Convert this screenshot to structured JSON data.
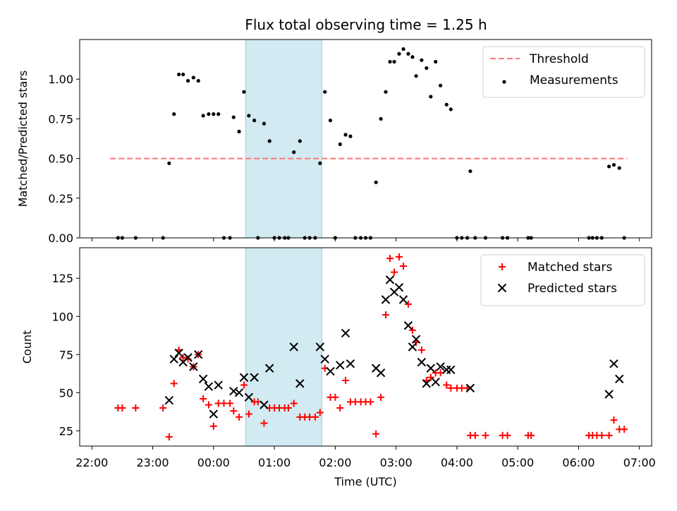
{
  "figure": {
    "title": "Flux total observing time = 1.25 h",
    "shaded_color": "#add8e6"
  },
  "chart_data": [
    {
      "type": "scatter",
      "title": "Flux total observing time = 1.25 h",
      "xlabel": "",
      "ylabel": "Matched/Predicted stars",
      "x_unit": "hours since 22:00 UTC",
      "xlim": [
        -0.2,
        9.2
      ],
      "ylim": [
        0,
        1.25
      ],
      "yticks": [
        0.0,
        0.25,
        0.5,
        0.75,
        1.0
      ],
      "ytick_labels": [
        "0.00",
        "0.25",
        "0.50",
        "0.75",
        "1.00"
      ],
      "legend_position": "upper right",
      "shaded_region": [
        2.53,
        3.78
      ],
      "threshold": {
        "name": "Threshold",
        "value": 0.5,
        "x": [
          0.3,
          8.8
        ],
        "color": "#ff7777",
        "style": "dashed"
      },
      "series": [
        {
          "name": "Measurements",
          "marker": "dot",
          "color": "#000000",
          "points": [
            [
              0.43,
              0
            ],
            [
              0.5,
              0
            ],
            [
              0.72,
              0
            ],
            [
              1.17,
              0
            ],
            [
              1.27,
              0.47
            ],
            [
              1.35,
              0.78
            ],
            [
              1.43,
              1.03
            ],
            [
              1.5,
              1.03
            ],
            [
              1.58,
              0.99
            ],
            [
              1.67,
              1.01
            ],
            [
              1.75,
              0.99
            ],
            [
              1.83,
              0.77
            ],
            [
              1.92,
              0.78
            ],
            [
              2.0,
              0.78
            ],
            [
              2.08,
              0.78
            ],
            [
              2.17,
              0
            ],
            [
              2.27,
              0
            ],
            [
              2.33,
              0.76
            ],
            [
              2.42,
              0.67
            ],
            [
              2.5,
              0.92
            ],
            [
              2.58,
              0.77
            ],
            [
              2.67,
              0.74
            ],
            [
              2.73,
              0
            ],
            [
              2.83,
              0.72
            ],
            [
              2.92,
              0.61
            ],
            [
              3.0,
              0
            ],
            [
              3.08,
              0
            ],
            [
              3.17,
              0
            ],
            [
              3.23,
              0
            ],
            [
              3.32,
              0.54
            ],
            [
              3.42,
              0.61
            ],
            [
              3.5,
              0
            ],
            [
              3.58,
              0
            ],
            [
              3.67,
              0
            ],
            [
              3.75,
              0.47
            ],
            [
              3.83,
              0.92
            ],
            [
              3.92,
              0.74
            ],
            [
              4.0,
              0
            ],
            [
              4.08,
              0.59
            ],
            [
              4.17,
              0.65
            ],
            [
              4.25,
              0.64
            ],
            [
              4.33,
              0
            ],
            [
              4.42,
              0
            ],
            [
              4.5,
              0
            ],
            [
              4.58,
              0
            ],
            [
              4.67,
              0.35
            ],
            [
              4.75,
              0.75
            ],
            [
              4.83,
              0.92
            ],
            [
              4.9,
              1.11
            ],
            [
              4.97,
              1.11
            ],
            [
              5.05,
              1.16
            ],
            [
              5.12,
              1.19
            ],
            [
              5.2,
              1.16
            ],
            [
              5.27,
              1.14
            ],
            [
              5.33,
              1.02
            ],
            [
              5.42,
              1.12
            ],
            [
              5.5,
              1.07
            ],
            [
              5.57,
              0.89
            ],
            [
              5.65,
              1.11
            ],
            [
              5.73,
              0.96
            ],
            [
              5.83,
              0.84
            ],
            [
              5.9,
              0.81
            ],
            [
              6.0,
              0
            ],
            [
              6.08,
              0
            ],
            [
              6.17,
              0
            ],
            [
              6.22,
              0.42
            ],
            [
              6.3,
              0
            ],
            [
              6.47,
              0
            ],
            [
              6.75,
              0
            ],
            [
              6.83,
              0
            ],
            [
              7.17,
              0
            ],
            [
              7.22,
              0
            ],
            [
              8.17,
              0
            ],
            [
              8.23,
              0
            ],
            [
              8.3,
              0
            ],
            [
              8.38,
              0
            ],
            [
              8.5,
              0.45
            ],
            [
              8.58,
              0.46
            ],
            [
              8.67,
              0.44
            ],
            [
              8.75,
              0
            ]
          ]
        }
      ]
    },
    {
      "type": "scatter",
      "title": "",
      "xlabel": "Time (UTC)",
      "ylabel": "Count",
      "x_unit": "hours since 22:00 UTC",
      "xlim": [
        -0.2,
        9.2
      ],
      "ylim": [
        15,
        145
      ],
      "yticks": [
        25,
        50,
        75,
        100,
        125
      ],
      "ytick_labels": [
        "25",
        "50",
        "75",
        "100",
        "125"
      ],
      "xticks": [
        0,
        1,
        2,
        3,
        4,
        5,
        6,
        7,
        8,
        9
      ],
      "xtick_labels": [
        "22:00",
        "23:00",
        "00:00",
        "01:00",
        "02:00",
        "03:00",
        "04:00",
        "05:00",
        "06:00",
        "07:00"
      ],
      "legend_position": "upper right",
      "shaded_region": [
        2.53,
        3.78
      ],
      "series": [
        {
          "name": "Matched stars",
          "marker": "plus",
          "color": "#ff0000",
          "points": [
            [
              0.43,
              40
            ],
            [
              0.5,
              40
            ],
            [
              0.72,
              40
            ],
            [
              1.17,
              40
            ],
            [
              1.27,
              21
            ],
            [
              1.35,
              56
            ],
            [
              1.43,
              78
            ],
            [
              1.5,
              73
            ],
            [
              1.58,
              72
            ],
            [
              1.67,
              67
            ],
            [
              1.75,
              75
            ],
            [
              1.83,
              46
            ],
            [
              1.92,
              42
            ],
            [
              2.0,
              28
            ],
            [
              2.08,
              43
            ],
            [
              2.17,
              43
            ],
            [
              2.27,
              43
            ],
            [
              2.33,
              38
            ],
            [
              2.42,
              34
            ],
            [
              2.5,
              55
            ],
            [
              2.58,
              36
            ],
            [
              2.67,
              44
            ],
            [
              2.73,
              44
            ],
            [
              2.83,
              30
            ],
            [
              2.92,
              40
            ],
            [
              3.0,
              40
            ],
            [
              3.08,
              40
            ],
            [
              3.17,
              40
            ],
            [
              3.23,
              40
            ],
            [
              3.32,
              43
            ],
            [
              3.42,
              34
            ],
            [
              3.5,
              34
            ],
            [
              3.58,
              34
            ],
            [
              3.67,
              34
            ],
            [
              3.75,
              37
            ],
            [
              3.83,
              66
            ],
            [
              3.92,
              47
            ],
            [
              4.0,
              47
            ],
            [
              4.08,
              40
            ],
            [
              4.17,
              58
            ],
            [
              4.25,
              44
            ],
            [
              4.33,
              44
            ],
            [
              4.42,
              44
            ],
            [
              4.5,
              44
            ],
            [
              4.58,
              44
            ],
            [
              4.67,
              23
            ],
            [
              4.75,
              47
            ],
            [
              4.83,
              101
            ],
            [
              4.9,
              138
            ],
            [
              4.97,
              129
            ],
            [
              5.05,
              139
            ],
            [
              5.12,
              133
            ],
            [
              5.2,
              108
            ],
            [
              5.27,
              91
            ],
            [
              5.33,
              83
            ],
            [
              5.42,
              78
            ],
            [
              5.5,
              58
            ],
            [
              5.57,
              60
            ],
            [
              5.65,
              63
            ],
            [
              5.73,
              63
            ],
            [
              5.83,
              55
            ],
            [
              5.9,
              53
            ],
            [
              6.0,
              53
            ],
            [
              6.08,
              53
            ],
            [
              6.17,
              53
            ],
            [
              6.22,
              22
            ],
            [
              6.3,
              22
            ],
            [
              6.47,
              22
            ],
            [
              6.75,
              22
            ],
            [
              6.83,
              22
            ],
            [
              7.17,
              22
            ],
            [
              7.22,
              22
            ],
            [
              8.17,
              22
            ],
            [
              8.23,
              22
            ],
            [
              8.3,
              22
            ],
            [
              8.38,
              22
            ],
            [
              8.5,
              22
            ],
            [
              8.58,
              32
            ],
            [
              8.67,
              26
            ],
            [
              8.75,
              26
            ]
          ]
        },
        {
          "name": "Predicted stars",
          "marker": "x",
          "color": "#000000",
          "points": [
            [
              1.27,
              45
            ],
            [
              1.35,
              72
            ],
            [
              1.43,
              76
            ],
            [
              1.5,
              70
            ],
            [
              1.58,
              73
            ],
            [
              1.67,
              67
            ],
            [
              1.75,
              75
            ],
            [
              1.83,
              59
            ],
            [
              1.92,
              54
            ],
            [
              2.0,
              36
            ],
            [
              2.08,
              55
            ],
            [
              2.33,
              51
            ],
            [
              2.42,
              50
            ],
            [
              2.5,
              60
            ],
            [
              2.58,
              47
            ],
            [
              2.67,
              60
            ],
            [
              2.83,
              42
            ],
            [
              2.92,
              66
            ],
            [
              3.32,
              80
            ],
            [
              3.42,
              56
            ],
            [
              3.75,
              80
            ],
            [
              3.83,
              72
            ],
            [
              3.92,
              64
            ],
            [
              4.08,
              68
            ],
            [
              4.17,
              89
            ],
            [
              4.25,
              69
            ],
            [
              4.67,
              66
            ],
            [
              4.75,
              63
            ],
            [
              4.83,
              111
            ],
            [
              4.9,
              124
            ],
            [
              4.97,
              116
            ],
            [
              5.05,
              119
            ],
            [
              5.12,
              111
            ],
            [
              5.2,
              94
            ],
            [
              5.27,
              80
            ],
            [
              5.33,
              85
            ],
            [
              5.42,
              70
            ],
            [
              5.5,
              56
            ],
            [
              5.57,
              66
            ],
            [
              5.65,
              57
            ],
            [
              5.73,
              67
            ],
            [
              5.83,
              65
            ],
            [
              5.9,
              65
            ],
            [
              6.22,
              53
            ],
            [
              8.5,
              49
            ],
            [
              8.58,
              69
            ],
            [
              8.67,
              59
            ]
          ]
        }
      ]
    }
  ]
}
